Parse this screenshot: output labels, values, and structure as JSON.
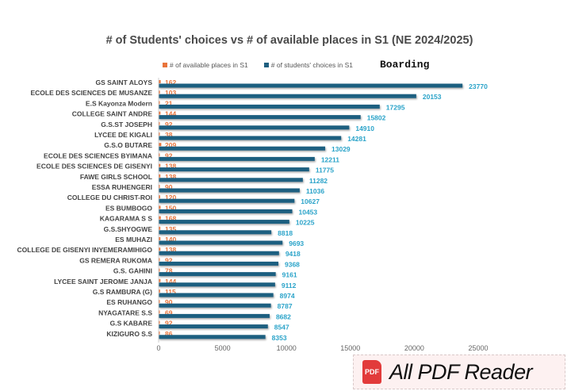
{
  "chart_data": {
    "type": "bar",
    "orientation": "horizontal",
    "title": "# of Students' choices vs # of available places in S1 (NE 2024/2025)",
    "annotation": "Boarding",
    "categories": [
      "GS SAINT ALOYS",
      "ECOLE DES SCIENCES DE MUSANZE",
      "E.S Kayonza Modern",
      "COLLEGE SAINT ANDRE",
      "G.S.ST JOSEPH",
      "LYCEE DE KIGALI",
      "G.S.O  BUTARE",
      "ECOLE DES SCIENCES  BYIMANA",
      "ECOLE DES SCIENCES DE GISENYI",
      "FAWE GIRLS SCHOOL",
      "ESSA RUHENGERI",
      "COLLEGE DU CHRIST-ROI",
      "ES BUMBOGO",
      "KAGARAMA S S",
      "G.S.SHYOGWE",
      "ES MUHAZI",
      "COLLEGE DE GISENYI INYEMERAMIHIGO",
      "GS REMERA RUKOMA",
      "G.S. GAHINI",
      "LYCEE SAINT JEROME JANJA",
      "G.S RAMBURA (G)",
      "ES RUHANGO",
      "NYAGATARE S.S",
      "G.S KABARE",
      "KIZIGURO S.S"
    ],
    "series": [
      {
        "name": "# of available places in S1",
        "color": "#e8743b",
        "values": [
          162,
          103,
          21,
          144,
          92,
          38,
          209,
          92,
          138,
          138,
          90,
          120,
          150,
          168,
          135,
          140,
          138,
          92,
          78,
          144,
          115,
          90,
          69,
          92,
          86
        ]
      },
      {
        "name": "# of students' choices in S1",
        "color": "#1f5f80",
        "label_color": "#2aa3c9",
        "values": [
          23770,
          20153,
          17295,
          15802,
          14910,
          14281,
          13029,
          12211,
          11775,
          11282,
          11036,
          10627,
          10453,
          10225,
          8818,
          9693,
          9418,
          9368,
          9161,
          9112,
          8974,
          8787,
          8682,
          8547,
          8353
        ]
      }
    ],
    "xticks": [
      0,
      5000,
      10000,
      15000,
      20000,
      25000
    ],
    "xlim": [
      0,
      25000
    ],
    "legend_position": "top-center",
    "grid": false
  },
  "watermark": {
    "badge": "PDF",
    "text": "All PDF Reader"
  }
}
